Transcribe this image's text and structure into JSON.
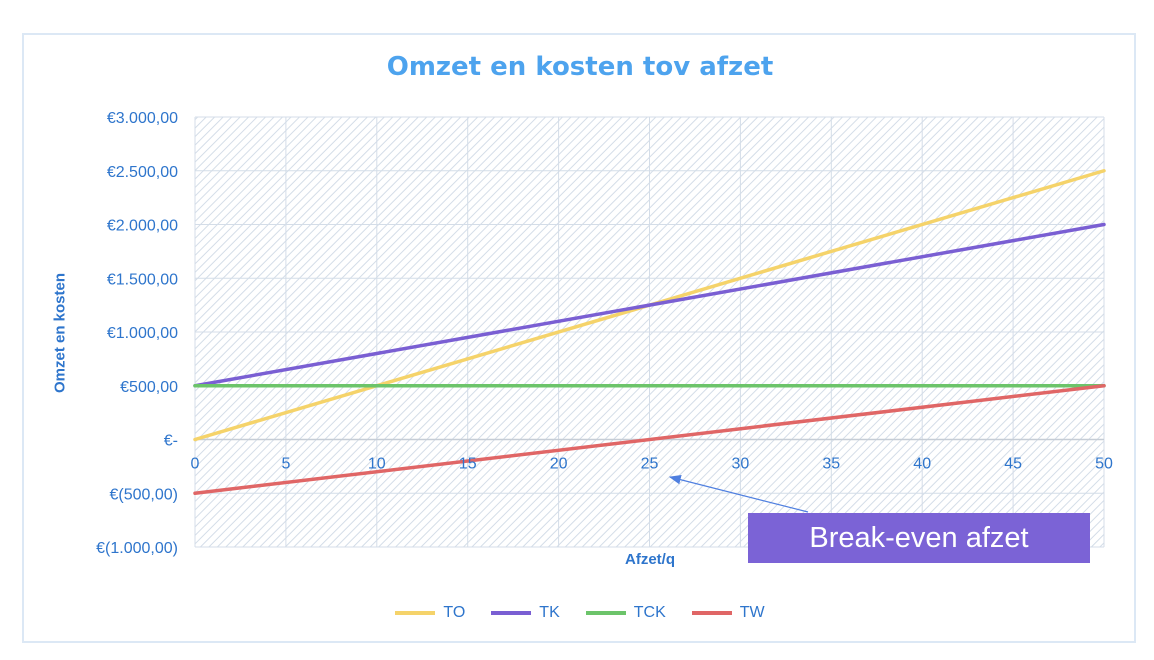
{
  "chart_data": {
    "type": "line",
    "title": "Omzet en kosten tov afzet",
    "xlabel": "Afzet/q",
    "ylabel": "Omzet en kosten",
    "x_ticks": [
      "0",
      "5",
      "10",
      "15",
      "20",
      "25",
      "30",
      "35",
      "40",
      "45",
      "50"
    ],
    "y_ticks": [
      "€(1.000,00)",
      "€(500,00)",
      "€-",
      "€500,00",
      "€1.000,00",
      "€1.500,00",
      "€2.000,00",
      "€2.500,00",
      "€3.000,00"
    ],
    "xlim": [
      0,
      50
    ],
    "ylim": [
      -1000,
      3000
    ],
    "grid": true,
    "legend_position": "bottom",
    "series": [
      {
        "name": "TO",
        "color": "#f5d36a",
        "x": [
          0,
          50
        ],
        "y": [
          0,
          2500
        ]
      },
      {
        "name": "TK",
        "color": "#7a5fd3",
        "x": [
          0,
          50
        ],
        "y": [
          500,
          2000
        ]
      },
      {
        "name": "TCK",
        "color": "#6cc46a",
        "x": [
          0,
          50
        ],
        "y": [
          500,
          500
        ]
      },
      {
        "name": "TW",
        "color": "#e06666",
        "x": [
          0,
          50
        ],
        "y": [
          -500,
          500
        ]
      }
    ],
    "annotations": [
      {
        "text": "Break-even afzet",
        "target_x": 26,
        "target_y": -200
      }
    ]
  }
}
